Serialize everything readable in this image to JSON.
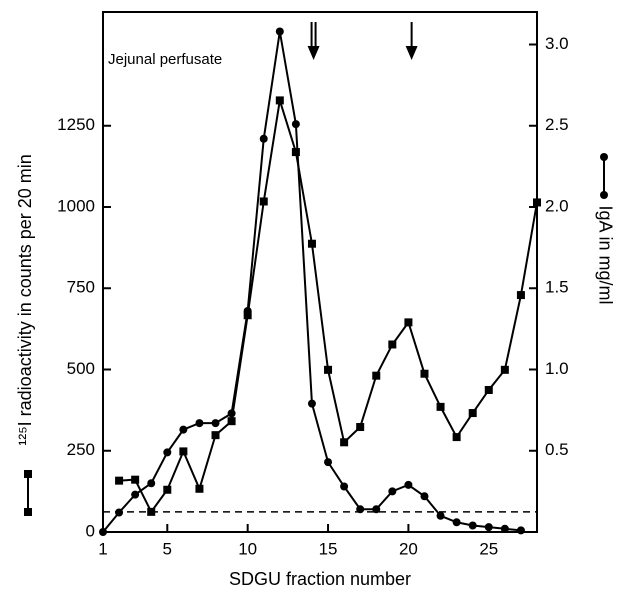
{
  "chart_data": {
    "type": "line",
    "annotation": "Jejunal perfusate",
    "x_label": "SDGU fraction number",
    "y_label": "¹²⁵I radioactivity in counts per 20 min",
    "y2_label": "IgA in mg/ml",
    "xlim": [
      1,
      28
    ],
    "xticks": [
      1,
      5,
      10,
      15,
      20,
      25
    ],
    "ylim": [
      0,
      1600
    ],
    "yticks": [
      0,
      250,
      500,
      750,
      1000,
      1250
    ],
    "y2lim": [
      0,
      3.2
    ],
    "y2ticks": [
      0.5,
      {
        "value": 1.0,
        "label": "1.0"
      },
      1.5,
      {
        "value": 2.0,
        "label": "2.0"
      },
      2.5,
      {
        "value": 3.0,
        "label": "3.0"
      }
    ],
    "series": [
      {
        "marker": "square",
        "color": "#000000",
        "x": [
          2,
          3,
          4,
          5,
          6,
          7,
          8,
          9,
          10,
          11,
          12,
          13,
          14,
          15,
          16,
          17,
          18,
          19,
          20,
          21,
          22,
          23,
          24,
          25,
          26,
          27,
          28
        ],
        "values": [
          158,
          161,
          62,
          130,
          248,
          133,
          298,
          341,
          667,
          1017,
          1328,
          1169,
          887,
          499,
          276,
          323,
          481,
          577,
          645,
          487,
          385,
          292,
          366,
          437,
          499,
          729,
          1014
        ]
      },
      {
        "marker": "circle",
        "color": "#000000",
        "axis": "y2",
        "x": [
          1,
          2,
          3,
          4,
          5,
          6,
          7,
          8,
          9,
          10,
          11,
          12,
          13,
          14,
          15,
          16,
          17,
          18,
          19,
          20,
          21,
          22,
          23,
          24,
          25,
          26,
          27
        ],
        "values": [
          0,
          0.12,
          0.23,
          0.3,
          0.49,
          0.63,
          0.67,
          0.67,
          0.73,
          1.36,
          2.42,
          3.08,
          2.51,
          0.79,
          0.43,
          0.28,
          0.14,
          0.14,
          0.25,
          0.29,
          0.22,
          0.1,
          0.06,
          0.04,
          0.03,
          0.02,
          0.01
        ]
      }
    ],
    "reference_line": 62,
    "arrows": [
      {
        "x": 14.1,
        "count": 2
      },
      {
        "x": 20.2,
        "count": 1
      }
    ]
  }
}
